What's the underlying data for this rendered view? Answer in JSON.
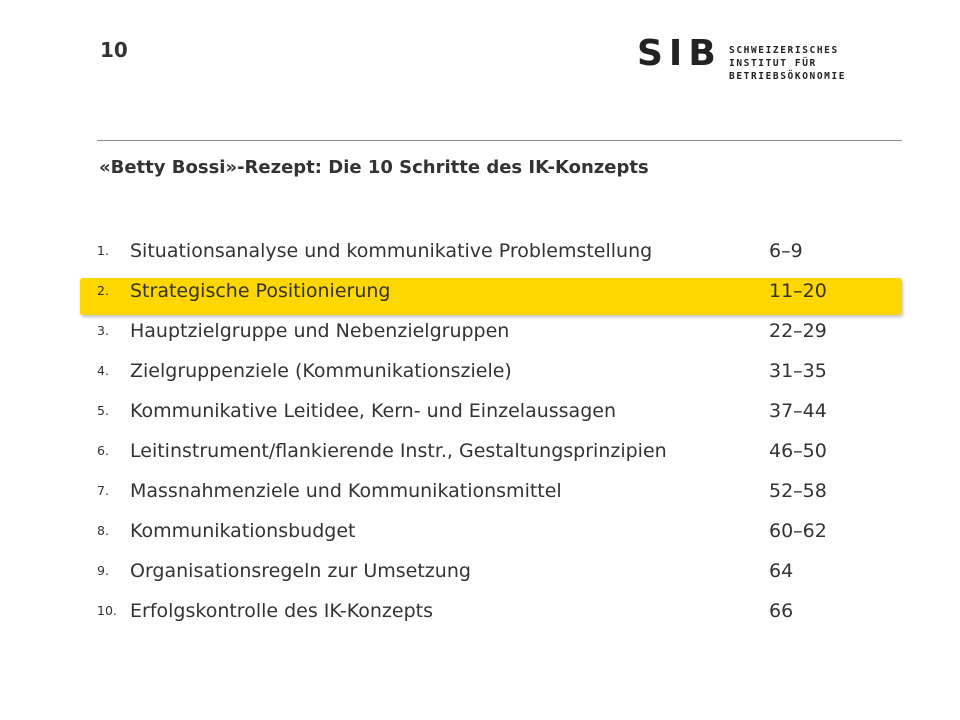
{
  "header": {
    "page_number": "10",
    "logo": {
      "mark": "SIB",
      "lines": [
        "SCHWEIZERISCHES",
        "INSTITUT FÜR",
        "BETRIEBSÖKONOMIE"
      ]
    }
  },
  "title": "«Betty Bossi»-Rezept: Die 10 Schritte des IK-Konzepts",
  "highlight_color": "#ffd700",
  "highlighted_step": 2,
  "steps": [
    {
      "num": "1.",
      "label": "Situationsanalyse und kommunikative Problemstellung",
      "pages": "6–9"
    },
    {
      "num": "2.",
      "label": "Strategische Positionierung",
      "pages": "11–20"
    },
    {
      "num": "3.",
      "label": "Hauptzielgruppe und Nebenzielgruppen",
      "pages": "22–29"
    },
    {
      "num": "4.",
      "label": "Zielgruppenziele (Kommunikationsziele)",
      "pages": "31–35"
    },
    {
      "num": "5.",
      "label": "Kommunikative Leitidee, Kern- und Einzelaussagen",
      "pages": "37–44"
    },
    {
      "num": "6.",
      "label": "Leitinstrument/flankierende Instr., Gestaltungsprinzipien",
      "pages": "46–50"
    },
    {
      "num": "7.",
      "label": "Massnahmenziele und Kommunikationsmittel",
      "pages": "52–58"
    },
    {
      "num": "8.",
      "label": "Kommunikationsbudget",
      "pages": "60–62"
    },
    {
      "num": "9.",
      "label": "Organisationsregeln zur Umsetzung",
      "pages": "64"
    },
    {
      "num": "10.",
      "label": "Erfolgskontrolle des IK-Konzepts",
      "pages": "66"
    }
  ]
}
